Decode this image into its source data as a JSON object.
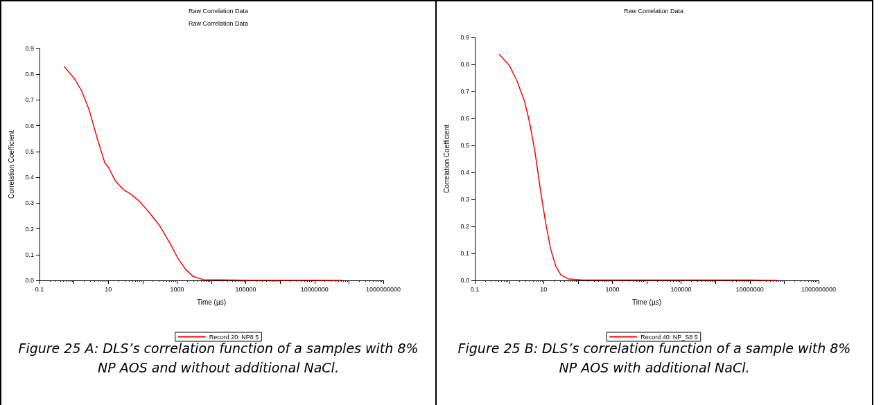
{
  "chart_data": [
    {
      "type": "line",
      "title": "Raw Correlation Data",
      "subtitle": "Raw Correlation Data",
      "xlabel": "Time (µs)",
      "ylabel": "Correlation Coefficient",
      "log": "x",
      "grid": false,
      "legend": "bottom",
      "marker": "none",
      "xlim": [
        0.1,
        1000000000
      ],
      "xticks": [
        0.1,
        {
          "value": 1,
          "label": null
        },
        10,
        {
          "value": 100,
          "label": null
        },
        1000,
        {
          "value": 10000,
          "label": null
        },
        100000,
        {
          "value": 1000000,
          "label": null
        },
        10000000,
        {
          "value": 100000000,
          "label": null
        },
        1000000000
      ],
      "ylim": [
        0,
        0.9
      ],
      "yticks": [
        {
          "value": 0,
          "label": "0.0"
        },
        0.1,
        0.2,
        0.3,
        0.4,
        0.5,
        0.6,
        0.7,
        0.8,
        0.9
      ],
      "series": [
        {
          "name": "Record 20: NP8 5",
          "color": "#ff0000",
          "x": [
            0.52,
            1,
            1.7,
            2.8,
            4.8,
            8,
            10,
            16,
            27,
            46,
            76,
            150,
            310,
            620,
            1050,
            1740,
            2950,
            5900,
            16600,
            100000,
            1000000,
            10000000,
            65000000
          ],
          "values": [
            0.83,
            0.786,
            0.735,
            0.66,
            0.55,
            0.455,
            0.44,
            0.387,
            0.353,
            0.334,
            0.31,
            0.266,
            0.213,
            0.145,
            0.087,
            0.044,
            0.015,
            0.003,
            0.002,
            0.001,
            0.001,
            0.001,
            0.0
          ]
        }
      ],
      "annotations": [
        "Figure 25 A: DLS’s correlation function of a samples with 8% NP AOS and without additional NaCl."
      ]
    },
    {
      "type": "line",
      "title": "Raw Correlation Data",
      "xlabel": "Time (µs)",
      "ylabel": "Correlation Coefficient",
      "log": "x",
      "grid": false,
      "legend": "bottom",
      "marker": "none",
      "xlim": [
        0.1,
        1000000000
      ],
      "xticks": [
        0.1,
        {
          "value": 1,
          "label": null
        },
        10,
        {
          "value": 100,
          "label": null
        },
        1000,
        {
          "value": 10000,
          "label": null
        },
        100000,
        {
          "value": 1000000,
          "label": null
        },
        10000000,
        {
          "value": 100000000,
          "label": null
        },
        1000000000
      ],
      "ylim": [
        0,
        0.9
      ],
      "yticks": [
        {
          "value": 0,
          "label": "0.0"
        },
        0.1,
        0.2,
        0.3,
        0.4,
        0.5,
        0.6,
        0.7,
        0.8,
        0.9
      ],
      "series": [
        {
          "name": "Record 40: NP_S8 5",
          "color": "#ff0000",
          "x": [
            0.51,
            1,
            1.66,
            2.8,
            4,
            5.6,
            8,
            11.3,
            16,
            22.6,
            32,
            54,
            126,
            1000,
            100000,
            10000000,
            66000000
          ],
          "values": [
            0.838,
            0.797,
            0.741,
            0.663,
            0.58,
            0.478,
            0.339,
            0.219,
            0.117,
            0.053,
            0.02,
            0.005,
            0.002,
            0.001,
            0.001,
            0.001,
            0.0
          ]
        }
      ],
      "annotations": [
        "Figure 25 B: DLS’s correlation function of a sample with 8% NP AOS with additional NaCl."
      ]
    }
  ]
}
